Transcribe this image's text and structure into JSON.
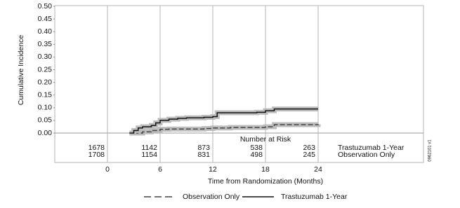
{
  "chart_data": {
    "type": "step",
    "x_label": "Time from Randomization (Months)",
    "y_label": "Cumulative Incidence",
    "code": "0962101 v1",
    "xlim": [
      -6,
      36
    ],
    "xticks": [
      0,
      6,
      12,
      18,
      24
    ],
    "ylim": [
      0,
      0.5
    ],
    "yticks": [
      {
        "value": 0,
        "label": "0.00"
      },
      {
        "value": 0.05,
        "label": "0.05"
      },
      {
        "value": 0.1,
        "label": "0.10"
      },
      {
        "value": 0.15,
        "label": "0.15"
      },
      {
        "value": 0.2,
        "label": "0.20"
      },
      {
        "value": 0.25,
        "label": "0.25"
      },
      {
        "value": 0.3,
        "label": "0.30"
      },
      {
        "value": 0.35,
        "label": "0.35"
      },
      {
        "value": 0.4,
        "label": "0.40"
      },
      {
        "value": 0.45,
        "label": "0.45"
      },
      {
        "value": 0.5,
        "label": "0.50"
      }
    ],
    "grid": true,
    "series": [
      {
        "name": "Observation Only",
        "color": "#444444",
        "dash": true,
        "x": [
          3,
          4,
          5,
          6,
          7,
          11,
          12,
          14,
          18,
          19,
          24
        ],
        "values": [
          0,
          0.005,
          0.01,
          0.015,
          0.016,
          0.018,
          0.02,
          0.022,
          0.025,
          0.033,
          0.035
        ]
      },
      {
        "name": "Trastuzumab 1-Year",
        "color": "#111111",
        "dash": false,
        "x": [
          2.5,
          3,
          3.5,
          4,
          5,
          5.5,
          6,
          7,
          8,
          9,
          11,
          12,
          12.5,
          17,
          18,
          19,
          24
        ],
        "values": [
          0,
          0.01,
          0.02,
          0.025,
          0.03,
          0.04,
          0.05,
          0.055,
          0.058,
          0.06,
          0.062,
          0.065,
          0.08,
          0.082,
          0.088,
          0.095,
          0.095
        ]
      }
    ],
    "risk_table": {
      "title": "Number at Risk",
      "x": [
        0,
        6,
        12,
        18,
        24
      ],
      "rows": [
        {
          "name": "Trastuzumab 1-Year",
          "values": [
            "1678",
            "1142",
            "873",
            "538",
            "263"
          ]
        },
        {
          "name": "Observation Only",
          "values": [
            "1708",
            "1154",
            "831",
            "498",
            "245"
          ]
        }
      ]
    }
  }
}
